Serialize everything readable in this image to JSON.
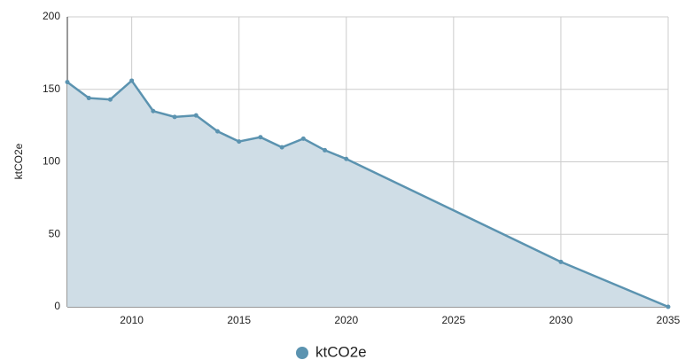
{
  "chart_data": {
    "type": "area",
    "y_label": "ktCO2e",
    "x": [
      2007,
      2008,
      2009,
      2010,
      2011,
      2012,
      2013,
      2014,
      2015,
      2016,
      2017,
      2018,
      2019,
      2020,
      2030,
      2035
    ],
    "series": [
      {
        "name": "ktCO2e",
        "color": "#5b93b0",
        "fill": "#cfdde6",
        "values": [
          155,
          144,
          143,
          156,
          135,
          131,
          132,
          121,
          114,
          117,
          110,
          116,
          108,
          102,
          31,
          0
        ]
      }
    ],
    "xlim": [
      2007,
      2035
    ],
    "xticks": [
      2010,
      2015,
      2020,
      2025,
      2030,
      2035
    ],
    "ylim": [
      0,
      200
    ],
    "yticks": [
      0,
      50,
      100,
      150,
      200
    ],
    "grid": true,
    "legend": "bottom"
  }
}
